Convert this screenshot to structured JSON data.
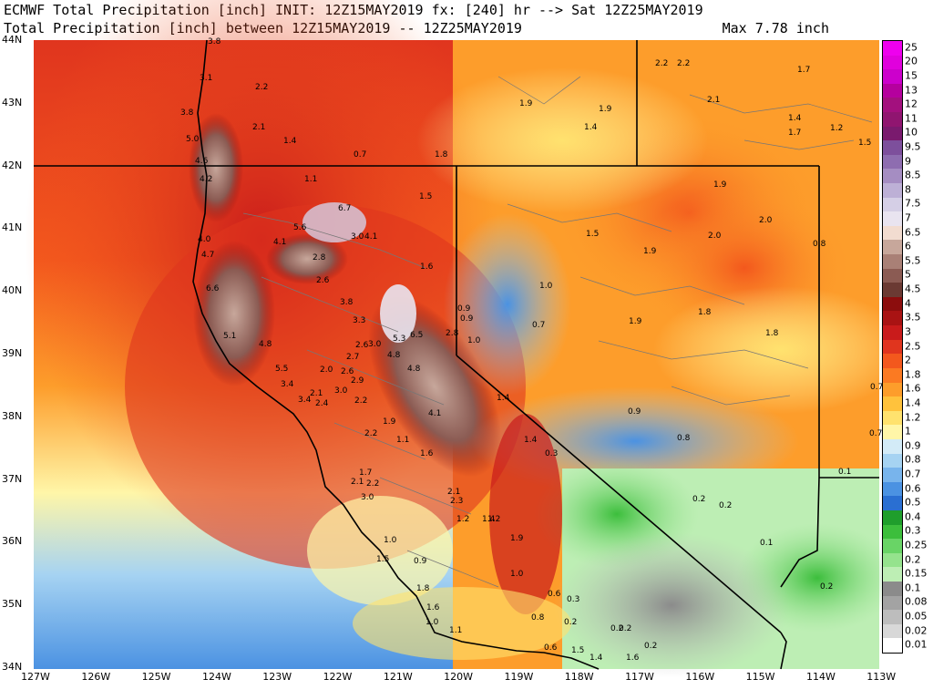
{
  "header": {
    "line1": "ECMWF Total Precipitation [inch] INIT: 12Z15MAY2019 fx: [240] hr --> Sat 12Z25MAY2019",
    "line2": "Total Precipitation [inch] between 12Z15MAY2019 -- 12Z25MAY2019",
    "max": "Max 7.78 inch"
  },
  "lat_labels": [
    "44N",
    "43N",
    "42N",
    "41N",
    "40N",
    "39N",
    "38N",
    "37N",
    "36N",
    "35N",
    "34N"
  ],
  "lon_labels": [
    "127W",
    "126W",
    "125W",
    "124W",
    "123W",
    "122W",
    "121W",
    "120W",
    "119W",
    "118W",
    "117W",
    "116W",
    "115W",
    "114W",
    "113W"
  ],
  "legend": {
    "labels": [
      "25",
      "20",
      "15",
      "13",
      "12",
      "11",
      "10",
      "9.5",
      "9",
      "8.5",
      "8",
      "7.5",
      "7",
      "6.5",
      "6",
      "5.5",
      "5",
      "4.5",
      "4",
      "3.5",
      "3",
      "2.5",
      "2",
      "1.8",
      "1.6",
      "1.4",
      "1.2",
      "1",
      "0.9",
      "0.8",
      "0.7",
      "0.6",
      "0.5",
      "0.4",
      "0.3",
      "0.25",
      "0.2",
      "0.15",
      "0.1",
      "0.08",
      "0.05",
      "0.02",
      "0.01"
    ],
    "colors": [
      "#ee00ee",
      "#e000dd",
      "#cc00cc",
      "#b5009e",
      "#a3107e",
      "#901570",
      "#7a1a6e",
      "#7d4f9c",
      "#8e6db0",
      "#a58dc2",
      "#bdb0d6",
      "#d5cfe6",
      "#e9e4f0",
      "#f2dcd0",
      "#c7a79b",
      "#a98076",
      "#8b5b53",
      "#6b3a33",
      "#8c0d0d",
      "#a91313",
      "#c91b1b",
      "#e0351e",
      "#f3581d",
      "#fb7a22",
      "#fd9d2b",
      "#ffc23c",
      "#ffe26e",
      "#fff6a8",
      "#d3ebf7",
      "#a6d3f2",
      "#78b4ec",
      "#4b92e2",
      "#2a6fd2",
      "#1f9e2c",
      "#3cbe3c",
      "#69d466",
      "#95e38d",
      "#bdeeb4",
      "#8b8b8b",
      "#a3a3a3",
      "#bdbdbd",
      "#d8d8d8",
      "#ffffff"
    ]
  },
  "point_values": [
    {
      "v": "3.8"
    },
    {
      "v": "3.1"
    },
    {
      "v": "2.2"
    },
    {
      "v": "3.8"
    },
    {
      "v": "2.1"
    },
    {
      "v": "1.4"
    },
    {
      "v": "5.0"
    },
    {
      "v": "4.6"
    },
    {
      "v": "0.7"
    },
    {
      "v": "1.8"
    },
    {
      "v": "4.2"
    },
    {
      "v": "1.1"
    },
    {
      "v": "1.5"
    },
    {
      "v": "6.7"
    },
    {
      "v": "5.6"
    },
    {
      "v": "4.1"
    },
    {
      "v": "4.1"
    },
    {
      "v": "4.0"
    },
    {
      "v": "3.0"
    },
    {
      "v": "4.7"
    },
    {
      "v": "2.8"
    },
    {
      "v": "1.6"
    },
    {
      "v": "2.6"
    },
    {
      "v": "6.6"
    },
    {
      "v": "3.8"
    },
    {
      "v": "3.3"
    },
    {
      "v": "5.3"
    },
    {
      "v": "6.5"
    },
    {
      "v": "5.1"
    },
    {
      "v": "4.8"
    },
    {
      "v": "2.8"
    },
    {
      "v": "2.6"
    },
    {
      "v": "3.0"
    },
    {
      "v": "4.8"
    },
    {
      "v": "2.7"
    },
    {
      "v": "5.5"
    },
    {
      "v": "4.8"
    },
    {
      "v": "2.0"
    },
    {
      "v": "2.6"
    },
    {
      "v": "2.9"
    },
    {
      "v": "3.4"
    },
    {
      "v": "3.0"
    },
    {
      "v": "2.1"
    },
    {
      "v": "2.4"
    },
    {
      "v": "3.4"
    },
    {
      "v": "2.2"
    },
    {
      "v": "1.9"
    },
    {
      "v": "4.1"
    },
    {
      "v": "1.1"
    },
    {
      "v": "1.6"
    },
    {
      "v": "2.2"
    },
    {
      "v": "1.7"
    },
    {
      "v": "2.1"
    },
    {
      "v": "2.2"
    },
    {
      "v": "3.0"
    },
    {
      "v": "2.1"
    },
    {
      "v": "2.3"
    },
    {
      "v": "1.2"
    },
    {
      "v": "1.4"
    },
    {
      "v": "1.2"
    },
    {
      "v": "1.9"
    },
    {
      "v": "1.0"
    },
    {
      "v": "1.5"
    },
    {
      "v": "0.9"
    },
    {
      "v": "1.0"
    },
    {
      "v": "1.8"
    },
    {
      "v": "1.6"
    },
    {
      "v": "1.0"
    },
    {
      "v": "1.1"
    },
    {
      "v": "0.8"
    },
    {
      "v": "0.6"
    },
    {
      "v": "0.3"
    },
    {
      "v": "0.2"
    },
    {
      "v": "0.6"
    },
    {
      "v": "1.5"
    },
    {
      "v": "1.4"
    },
    {
      "v": "1.6"
    },
    {
      "v": "0.2"
    },
    {
      "v": "0.2"
    },
    {
      "v": "0.2"
    },
    {
      "v": "1.9"
    },
    {
      "v": "1.9"
    },
    {
      "v": "1.4"
    },
    {
      "v": "2.2"
    },
    {
      "v": "2.2"
    },
    {
      "v": "2.1"
    },
    {
      "v": "1.7"
    },
    {
      "v": "1.4"
    },
    {
      "v": "1.7"
    },
    {
      "v": "1.2"
    },
    {
      "v": "1.5"
    },
    {
      "v": "1.9"
    },
    {
      "v": "2.0"
    },
    {
      "v": "2.0"
    },
    {
      "v": "1.5"
    },
    {
      "v": "1.9"
    },
    {
      "v": "0.8"
    },
    {
      "v": "1.0"
    },
    {
      "v": "0.9"
    },
    {
      "v": "0.9"
    },
    {
      "v": "0.7"
    },
    {
      "v": "1.9"
    },
    {
      "v": "1.8"
    },
    {
      "v": "1.8"
    },
    {
      "v": "1.0"
    },
    {
      "v": "1.4"
    },
    {
      "v": "0.9"
    },
    {
      "v": "1.4"
    },
    {
      "v": "0.3"
    },
    {
      "v": "0.8"
    },
    {
      "v": "0.7"
    },
    {
      "v": "0.7"
    },
    {
      "v": "0.1"
    },
    {
      "v": "0.2"
    },
    {
      "v": "0.2"
    },
    {
      "v": "0.1"
    },
    {
      "v": "0.2"
    }
  ]
}
